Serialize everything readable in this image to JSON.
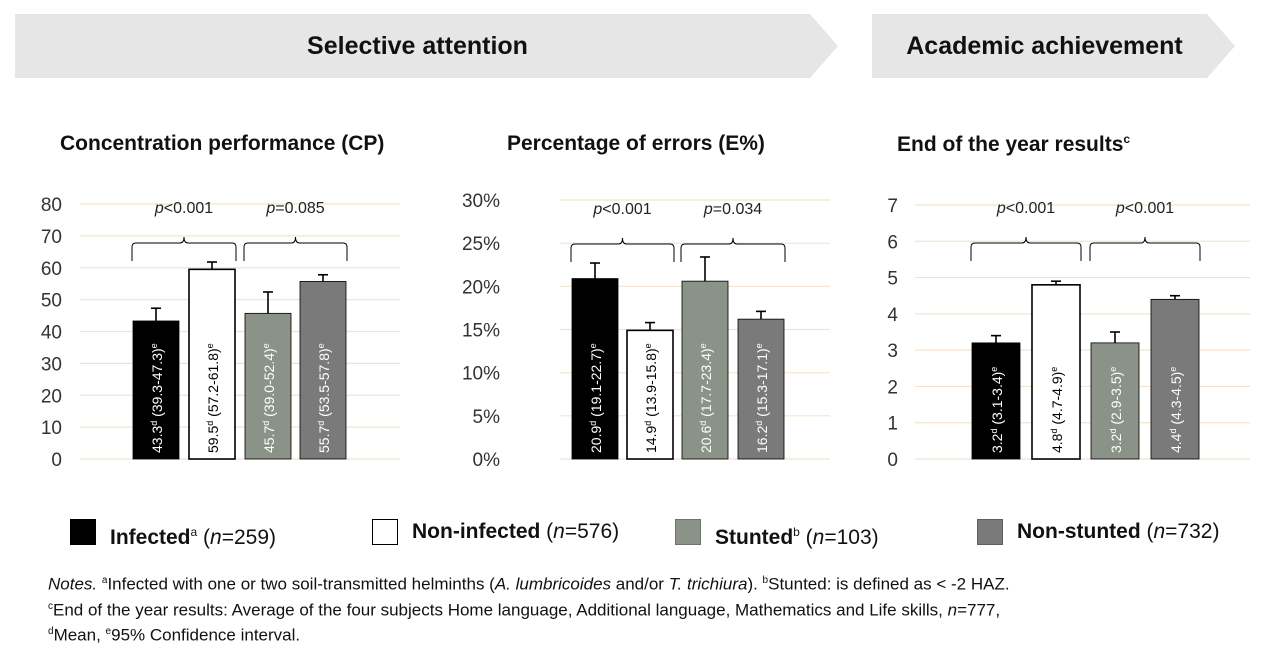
{
  "banners": [
    {
      "label": "Selective attention",
      "color": "#e6e6e6"
    },
    {
      "label": "Academic achievement",
      "color": "#e6e6e6"
    }
  ],
  "colors": {
    "infected": "#000000",
    "non_infected": "#ffffff",
    "stunted": "#8b9287",
    "non_stunted": "#7a7a7a",
    "gridline": "#f2e4cf"
  },
  "charts_meta": [
    {
      "title": "Concentration performance (CP)",
      "title_sup": ""
    },
    {
      "title": "Percentage of errors (E%)",
      "title_sup": ""
    },
    {
      "title": "End of the year results",
      "title_sup": "c"
    }
  ],
  "chart_data": [
    {
      "type": "bar",
      "title": "Concentration performance (CP)",
      "ylim": [
        0,
        80
      ],
      "yticks": [
        "0",
        "10",
        "20",
        "30",
        "40",
        "50",
        "60",
        "70",
        "80"
      ],
      "values": [
        43.3,
        59.5,
        45.7,
        55.7
      ],
      "err_low": [
        39.3,
        57.2,
        39.0,
        53.5
      ],
      "err_high": [
        47.3,
        61.8,
        52.4,
        57.8
      ],
      "bar_labels": [
        "43.3",
        "59.5",
        "45.7",
        "55.7"
      ],
      "ci_labels": [
        "(39.3-47.3)",
        "(57.2-61.8)",
        "(39.0-52.4)",
        "(53.5-57.8)"
      ],
      "label_sup_mean": "d",
      "label_sup_ci": "e",
      "p_values": [
        {
          "prefix": "p",
          "text": "<0.001"
        },
        {
          "prefix": "p",
          "text": "=0.085"
        }
      ],
      "grid": true
    },
    {
      "type": "bar",
      "title": "Percentage of errors (E%)",
      "ylim": [
        0,
        30
      ],
      "yticks": [
        "0%",
        "5%",
        "10%",
        "15%",
        "20%",
        "25%",
        "30%"
      ],
      "values": [
        20.9,
        14.9,
        20.6,
        16.2
      ],
      "err_low": [
        19.1,
        13.9,
        17.7,
        15.3
      ],
      "err_high": [
        22.7,
        15.8,
        23.4,
        17.1
      ],
      "bar_labels": [
        "20.9",
        "14.9",
        "20.6",
        "16.2"
      ],
      "ci_labels": [
        "(19.1-22.7)",
        "(13.9-15.8)",
        "(17.7-23.4)",
        "(15.3-17.1)"
      ],
      "label_sup_mean": "d",
      "label_sup_ci": "e",
      "p_values": [
        {
          "prefix": "p",
          "text": "<0.001"
        },
        {
          "prefix": "p",
          "text": "=0.034"
        }
      ],
      "grid": true
    },
    {
      "type": "bar",
      "title": "End of the year results",
      "ylim": [
        0,
        7
      ],
      "yticks": [
        "0",
        "1",
        "2",
        "3",
        "4",
        "5",
        "6",
        "7"
      ],
      "values": [
        3.2,
        4.8,
        3.2,
        4.4
      ],
      "err_low": [
        3.1,
        4.7,
        2.9,
        4.3
      ],
      "err_high": [
        3.4,
        4.9,
        3.5,
        4.5
      ],
      "bar_labels": [
        "3.2",
        "4.8",
        "3.2",
        "4.4"
      ],
      "ci_labels": [
        "(3.1-3.4)",
        "(4.7-4.9)",
        "(2.9-3.5)",
        "(4.3-4.5)"
      ],
      "label_sup_mean": "d",
      "label_sup_ci": "e",
      "p_values": [
        {
          "prefix": "p",
          "text": "<0.001"
        },
        {
          "prefix": "p",
          "text": "<0.001"
        }
      ],
      "grid": true
    }
  ],
  "legend": [
    {
      "label": "Infected",
      "sup": "a",
      "n_prefix": "n",
      "n_text": "=259",
      "color": "#000000"
    },
    {
      "label": "Non-infected",
      "sup": "",
      "n_prefix": "n",
      "n_text": "=576",
      "color": "#ffffff"
    },
    {
      "label": "Stunted",
      "sup": "b",
      "n_prefix": "n",
      "n_text": "=103",
      "color": "#8b9287"
    },
    {
      "label": "Non-stunted",
      "sup": "",
      "n_prefix": "n",
      "n_text": "=732",
      "color": "#7a7a7a"
    }
  ],
  "notes": {
    "lead": "Notes.",
    "a_sup": "a",
    "a_text1": "Infected with one or two soil-transmitted helminths (",
    "a_species1": "A. lumbricoides",
    "a_and": " and/or ",
    "a_species2": "T. trichiura",
    "a_text2": "). ",
    "b_sup": "b",
    "b_text": "Stunted: is defined as < -2 HAZ.",
    "c_sup": "c",
    "c_text": "End of the year results: Average of the four subjects Home language, Additional language, Mathematics and Life skills, ",
    "c_n": "n",
    "c_n_text": "=777,",
    "d_sup": "d",
    "d_text": "Mean, ",
    "e_sup": "e",
    "e_text": "95% Confidence interval."
  }
}
